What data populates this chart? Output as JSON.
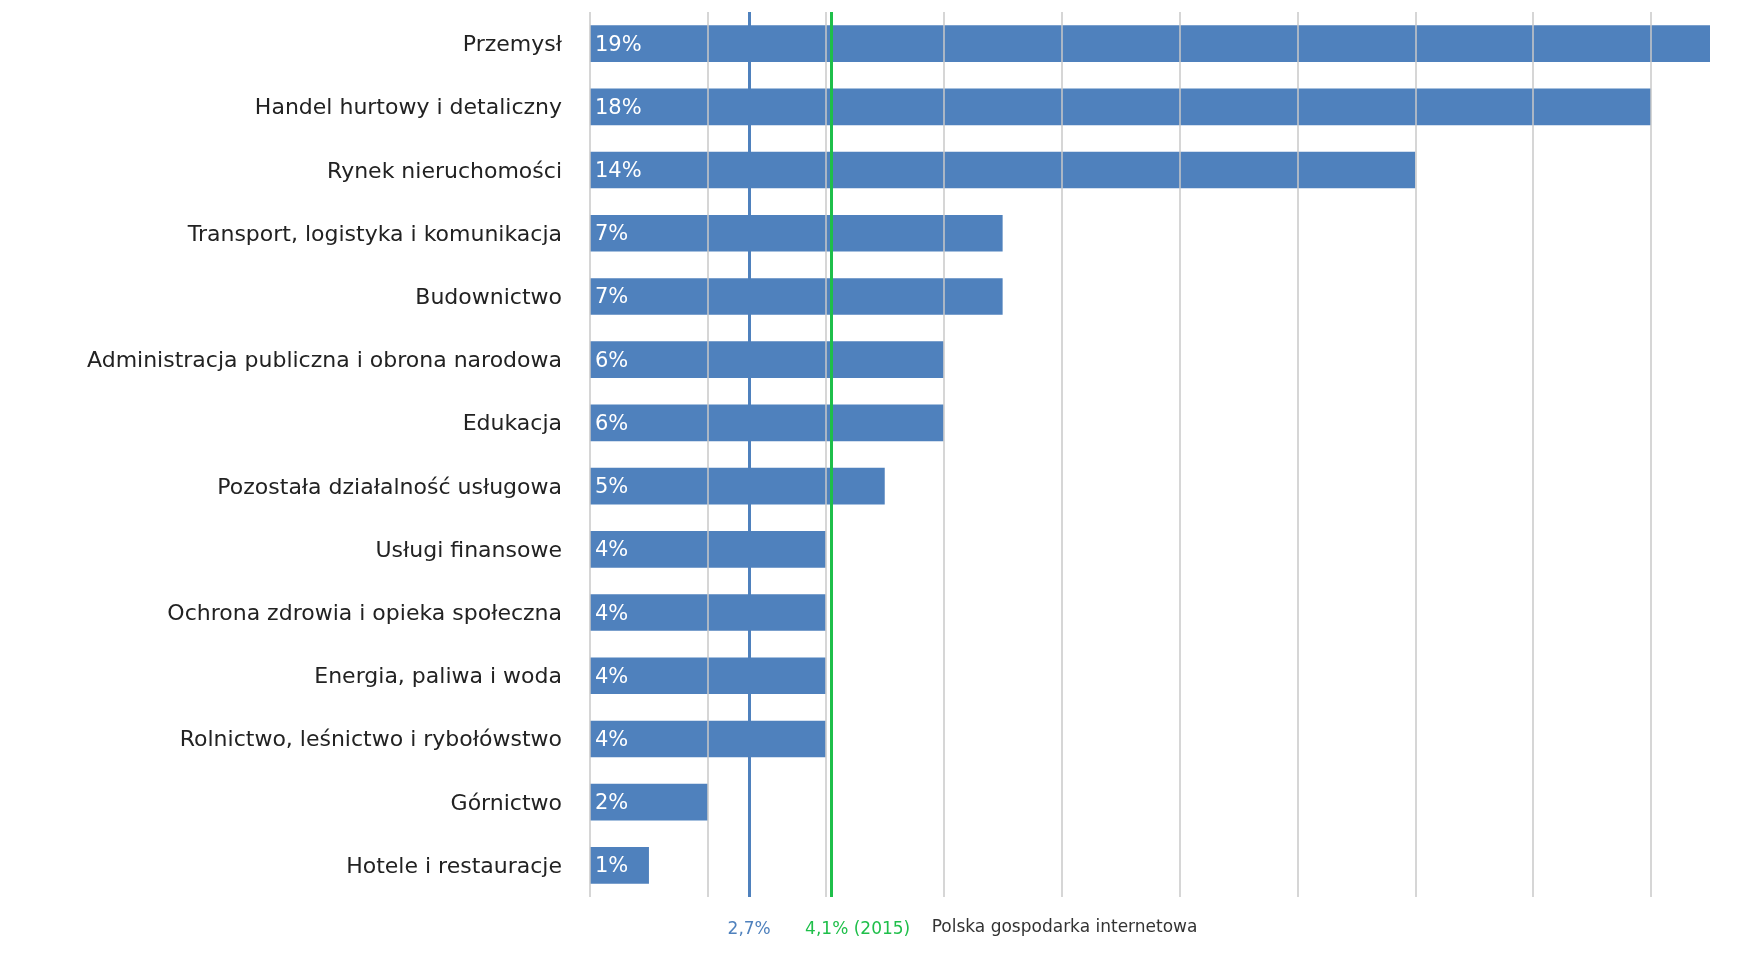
{
  "chart_data": {
    "type": "bar",
    "orientation": "horizontal",
    "categories": [
      "Przemysł",
      "Handel hurtowy i detaliczny",
      "Rynek nieruchomości",
      "Transport, logistyka i komunikacja",
      "Budownictwo",
      "Administracja publiczna i obrona narodowa",
      "Edukacja",
      "Pozostała działalność usługowa",
      "Usługi finansowe",
      "Ochrona zdrowia i opieka społeczna",
      "Energia, paliwa i woda",
      "Rolnictwo, leśnictwo i rybołówstwo",
      "Górnictwo",
      "Hotele i restauracje"
    ],
    "values": [
      19,
      18,
      14,
      7,
      7,
      6,
      6,
      5,
      4,
      4,
      4,
      4,
      2,
      1
    ],
    "value_labels": [
      "19%",
      "18%",
      "14%",
      "7%",
      "7%",
      "6%",
      "6%",
      "5%",
      "4%",
      "4%",
      "4%",
      "4%",
      "2%",
      "1%"
    ],
    "color": "#4f81bd",
    "xticks": [
      {
        "value": 0,
        "label": null
      },
      {
        "value": 2,
        "label": null
      },
      {
        "value": 4,
        "label": null
      },
      {
        "value": 6,
        "label": null
      },
      {
        "value": 8,
        "label": null
      },
      {
        "value": 10,
        "label": null
      },
      {
        "value": 12,
        "label": null
      },
      {
        "value": 14,
        "label": null
      },
      {
        "value": 16,
        "label": null
      },
      {
        "value": 18,
        "label": null
      }
    ],
    "tick_labels": "y",
    "grid": "x",
    "ref_lines": [
      {
        "axis": "x",
        "value": 2.7,
        "label": "2,7%",
        "color": "#4f81bd"
      },
      {
        "axis": "x",
        "value": 4.1,
        "label": "4,1% (2015)",
        "color": "#1fbf4a"
      }
    ],
    "annotations": [
      "Polska gospodarka internetowa"
    ]
  }
}
